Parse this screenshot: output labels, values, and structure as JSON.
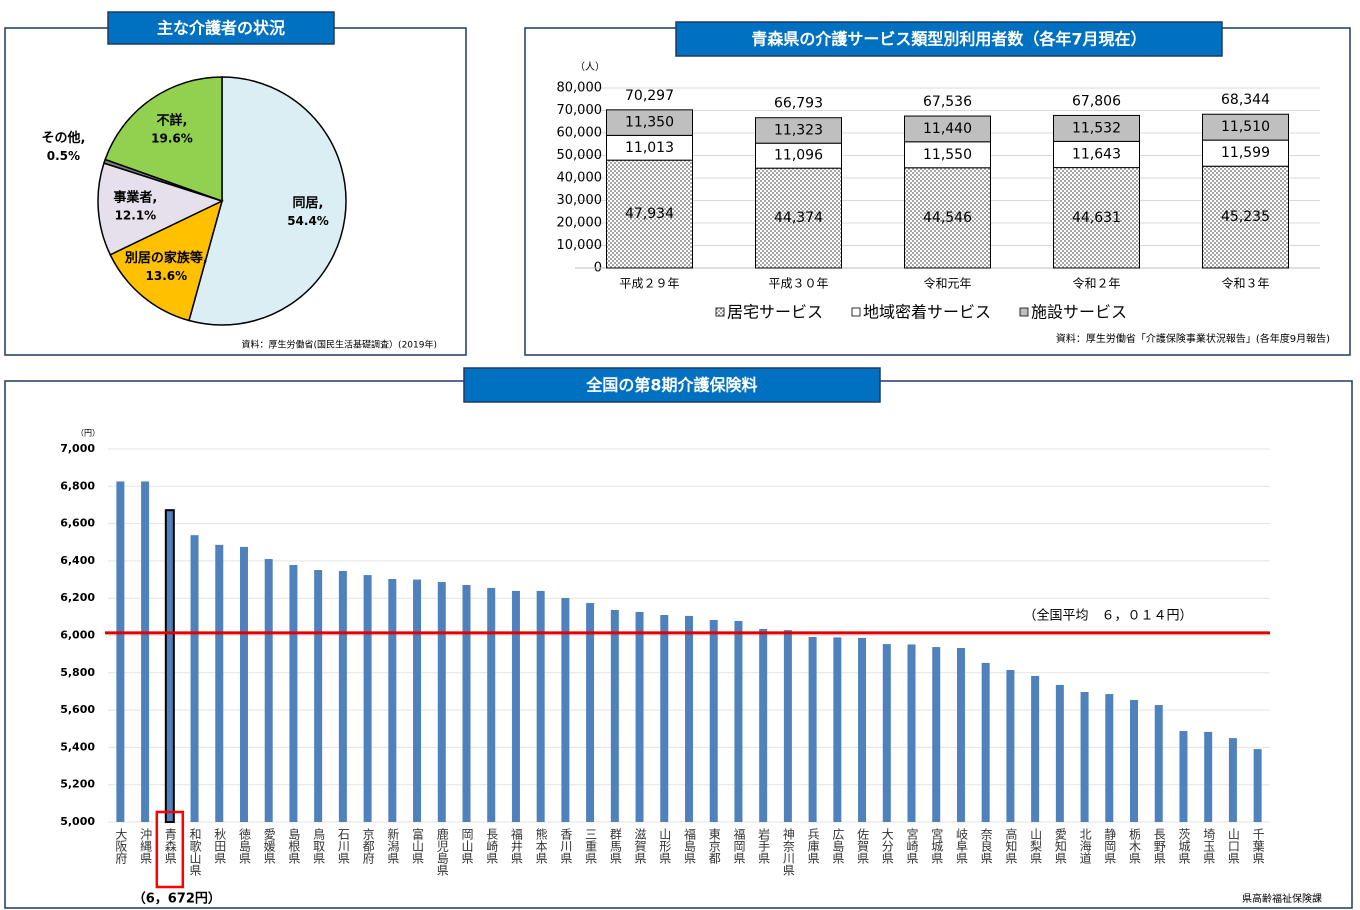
{
  "chart_data": [
    {
      "type": "pie",
      "title": "主な介護者の状況",
      "categories": [
        "同居,",
        "別居の家族等,",
        "事業者,",
        "その他,",
        "不詳,"
      ],
      "values": [
        54.4,
        13.6,
        12.1,
        0.5,
        19.6
      ],
      "value_labels": [
        "54.4%",
        "13.6%",
        "12.1%",
        "0.5%",
        "19.6%"
      ],
      "colors": [
        "#dbeef4",
        "#ffc000",
        "#e6e0ec",
        "#7f7f7f",
        "#92d050"
      ],
      "source": "資料：厚生労働省(国民生活基礎調査）(2019年)"
    },
    {
      "type": "stacked_bar",
      "title": "青森県の介護サービス類型別利用者数（各年7月現在）",
      "y_unit": "（人）",
      "categories": [
        "平成２９年",
        "平成３０年",
        "令和元年",
        "令和２年",
        "令和３年"
      ],
      "series": [
        {
          "name": "居宅サービス",
          "color": "#a6a6a6",
          "pattern": true,
          "values": [
            47934,
            44374,
            44546,
            44631,
            45235
          ],
          "value_labels": [
            "47,934",
            "44,374",
            "44,546",
            "44,631",
            "45,235"
          ]
        },
        {
          "name": "地域密着サービス",
          "color": "#ffffff",
          "values": [
            11013,
            11096,
            11550,
            11643,
            11599
          ],
          "value_labels": [
            "11,013",
            "11,096",
            "11,550",
            "11,643",
            "11,599"
          ]
        },
        {
          "name": "施設サービス",
          "color": "#bfbfbf",
          "values": [
            11350,
            11323,
            11440,
            11532,
            11510
          ],
          "value_labels": [
            "11,350",
            "11,323",
            "11,440",
            "11,532",
            "11,510"
          ]
        }
      ],
      "totals": [
        70297,
        66793,
        67536,
        67806,
        68344
      ],
      "total_labels": [
        "70,297",
        "66,793",
        "67,536",
        "67,806",
        "68,344"
      ],
      "ylim": [
        0,
        80000
      ],
      "yticks": [
        0,
        {
          "value": 10000,
          "label": "10,000"
        },
        {
          "value": 20000,
          "label": "20,000"
        },
        {
          "value": 30000,
          "label": "30,000"
        },
        {
          "value": 40000,
          "label": "40,000"
        },
        {
          "value": 50000,
          "label": "50,000"
        },
        {
          "value": 60000,
          "label": "60,000"
        },
        {
          "value": 70000,
          "label": "70,000"
        },
        {
          "value": 80000,
          "label": "80,000"
        }
      ],
      "grid": true,
      "source": "資料：厚生労働省「介護保険事業状況報告」(各年度9月報告)"
    },
    {
      "type": "bar",
      "title": "全国の第8期介護保険料",
      "y_unit": "（円）",
      "categories": [
        "大阪府",
        "沖縄県",
        "青森県",
        "和歌山県",
        "秋田県",
        "徳島県",
        "愛媛県",
        "島根県",
        "鳥取県",
        "石川県",
        "京都府",
        "新潟県",
        "富山県",
        "鹿児島県",
        "岡山県",
        "長崎県",
        "福井県",
        "熊本県",
        "香川県",
        "三重県",
        "群馬県",
        "滋賀県",
        "山形県",
        "福島県",
        "東京都",
        "福岡県",
        "岩手県",
        "神奈川県",
        "兵庫県",
        "広島県",
        "佐賀県",
        "大分県",
        "宮崎県",
        "宮城県",
        "岐阜県",
        "奈良県",
        "高知県",
        "山梨県",
        "愛知県",
        "北海道",
        "静岡県",
        "栃木県",
        "長野県",
        "茨城県",
        "埼玉県",
        "山口県",
        "千葉県"
      ],
      "values": [
        6826,
        6826,
        6672,
        6538,
        6486,
        6475,
        6410,
        6378,
        6351,
        6346,
        6324,
        6303,
        6300,
        6287,
        6271,
        6255,
        6239,
        6239,
        6201,
        6174,
        6137,
        6126,
        6110,
        6105,
        6083,
        6078,
        6035,
        6029,
        5992,
        5990,
        5987,
        5954,
        5952,
        5938,
        5933,
        5853,
        5815,
        5783,
        5735,
        5697,
        5686,
        5654,
        5627,
        5488,
        5483,
        5450,
        5391
      ],
      "color": "#4f81bd",
      "highlight_index": 2,
      "highlight_color": "#ff0000",
      "highlight_label": "（6，672円）",
      "average": 6014,
      "average_label": "（全国平均　６，０１４円）",
      "average_color": "#e00000",
      "ylim": [
        5000,
        7000
      ],
      "yticks": [
        {
          "value": 5000,
          "label": "5,000"
        },
        {
          "value": 5200,
          "label": "5,200"
        },
        {
          "value": 5400,
          "label": "5,400"
        },
        {
          "value": 5600,
          "label": "5,600"
        },
        {
          "value": 5800,
          "label": "5,800"
        },
        {
          "value": 6000,
          "label": "6,000"
        },
        {
          "value": 6200,
          "label": "6,200"
        },
        {
          "value": 6400,
          "label": "6,400"
        },
        {
          "value": 6600,
          "label": "6,600"
        },
        {
          "value": 6800,
          "label": "6,800"
        },
        {
          "value": 7000,
          "label": "7,000"
        }
      ],
      "grid": true,
      "source": "県高齢福祉保険課"
    }
  ]
}
